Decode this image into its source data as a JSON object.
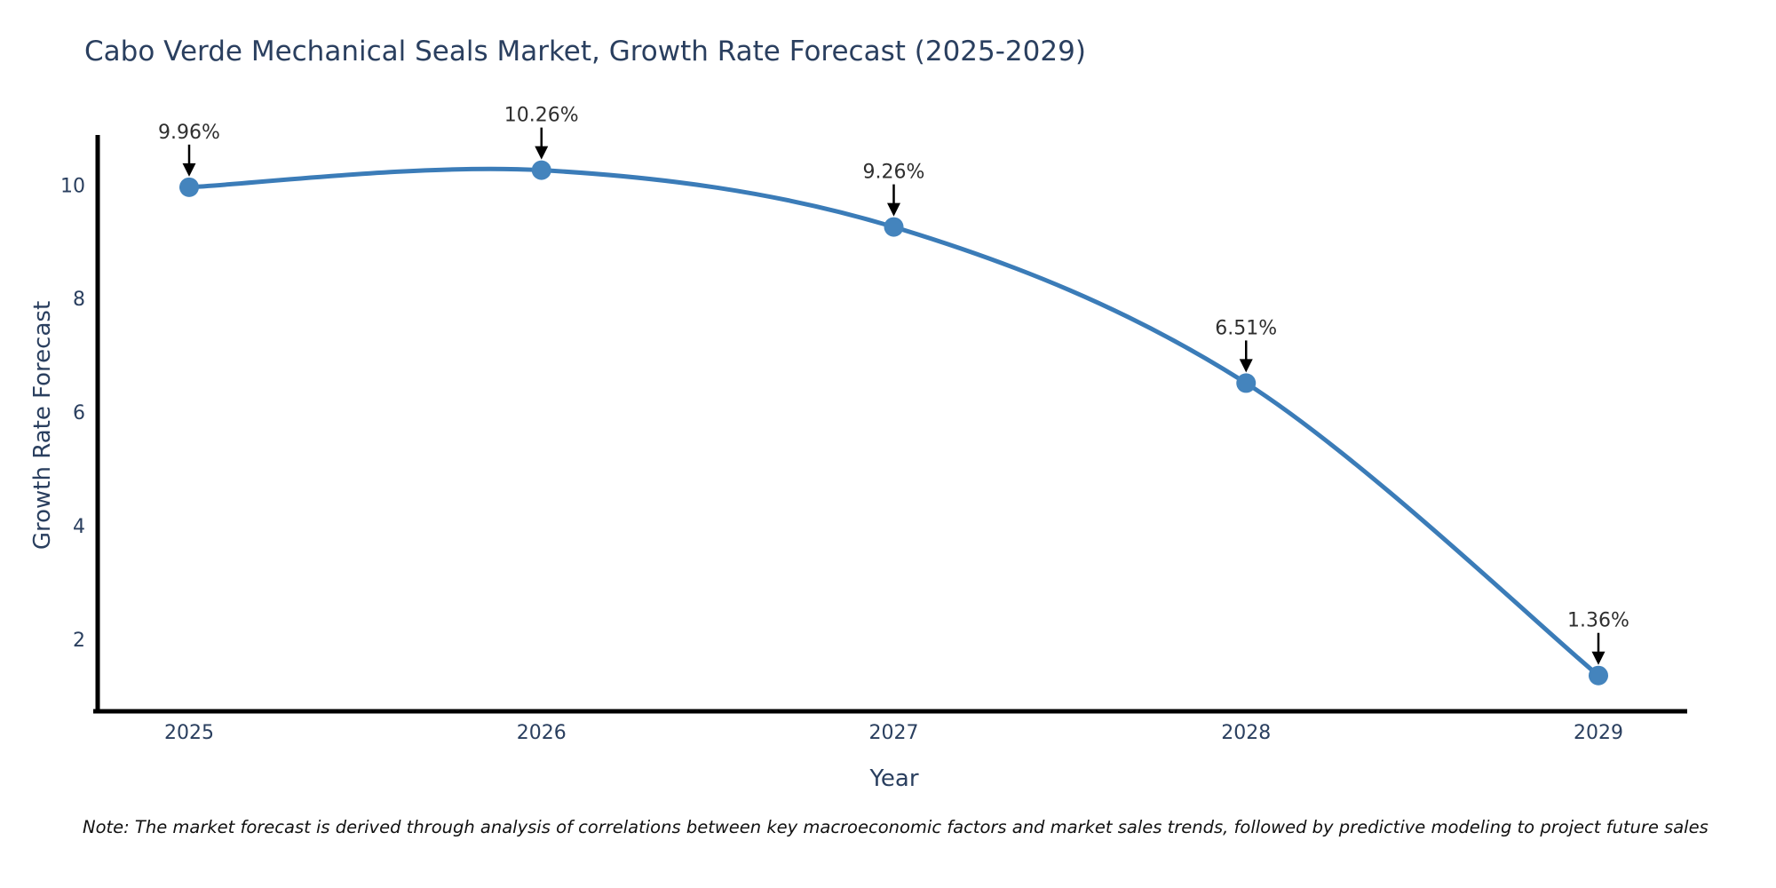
{
  "chart_data": {
    "type": "line",
    "title": "Cabo Verde Mechanical Seals Market, Growth Rate Forecast (2025-2029)",
    "xlabel": "Year",
    "ylabel": "Growth Rate Forecast",
    "categories": [
      "2025",
      "2026",
      "2027",
      "2028",
      "2029"
    ],
    "series": [
      {
        "name": "Growth Rate Forecast",
        "values": [
          9.96,
          10.26,
          9.26,
          6.51,
          1.36
        ],
        "point_labels": [
          "9.96%",
          "10.26%",
          "9.26%",
          "6.51%",
          "1.36%"
        ]
      }
    ],
    "yticks": [
      2,
      4,
      6,
      8,
      10
    ],
    "ylim": [
      0.73,
      10.88
    ],
    "line_shape": "spline",
    "grid": false,
    "legend_position": "none",
    "markers": true,
    "annotations_with_arrows": true,
    "note": "Note: The market forecast is derived through analysis of correlations between key macroeconomic factors and market sales trends, followed by predictive modeling to project future sales",
    "colors": {
      "line": "#3b7cb8",
      "marker": "#4484bd",
      "axis": "#000000",
      "title_text": "#2a3f5f",
      "tick_text": "#2a3f5f",
      "annotation_text": "#2f2f2f",
      "arrow": "#000000",
      "background": "#ffffff"
    }
  }
}
